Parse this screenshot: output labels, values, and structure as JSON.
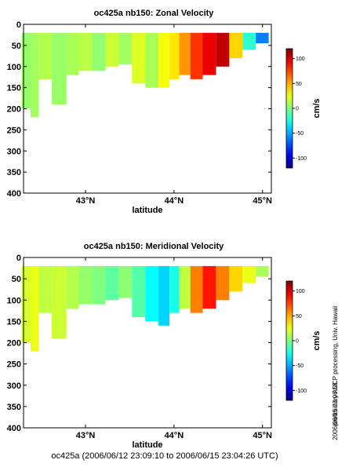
{
  "footer": "oc425a (2006/06/12 23:09:10 to 2006/06/15 23:04:26 UTC)",
  "side_note_1": "preliminary ADCP processing,   Univ. Hawaii",
  "side_note_2": "2006/06/15 23:06:58",
  "chart_data": [
    {
      "type": "heatmap",
      "title": "oc425a nb150: Zonal Velocity",
      "xlabel": "latitude",
      "ylabel": "",
      "xlim": [
        42.3,
        45.1
      ],
      "ylim": [
        400,
        0
      ],
      "xticks": [
        {
          "value": 43,
          "label": "43°N"
        },
        {
          "value": 44,
          "label": "44°N"
        },
        {
          "value": 45,
          "label": "45°N"
        }
      ],
      "yticks": [
        0,
        50,
        100,
        150,
        200,
        250,
        300,
        350,
        400
      ],
      "colorbar": {
        "label": "cm/s",
        "range": [
          -120,
          120
        ],
        "ticks": [
          100,
          50,
          0,
          -50,
          -100
        ]
      },
      "profiles": [
        {
          "lat": 42.34,
          "depth": 200,
          "value": 5
        },
        {
          "lat": 42.42,
          "depth": 220,
          "value": 8
        },
        {
          "lat": 42.52,
          "depth": 130,
          "value": 12
        },
        {
          "lat": 42.72,
          "depth": 190,
          "value": 6
        },
        {
          "lat": 42.85,
          "depth": 120,
          "value": 10
        },
        {
          "lat": 43.0,
          "depth": 110,
          "value": 14
        },
        {
          "lat": 43.15,
          "depth": 110,
          "value": 4
        },
        {
          "lat": 43.3,
          "depth": 100,
          "value": 18
        },
        {
          "lat": 43.45,
          "depth": 95,
          "value": 8
        },
        {
          "lat": 43.6,
          "depth": 140,
          "value": 22
        },
        {
          "lat": 43.75,
          "depth": 150,
          "value": 10
        },
        {
          "lat": 43.9,
          "depth": 150,
          "value": 28
        },
        {
          "lat": 44.0,
          "depth": 130,
          "value": 36
        },
        {
          "lat": 44.12,
          "depth": 120,
          "value": 55
        },
        {
          "lat": 44.25,
          "depth": 130,
          "value": 78
        },
        {
          "lat": 44.4,
          "depth": 120,
          "value": 95
        },
        {
          "lat": 44.55,
          "depth": 100,
          "value": 105
        },
        {
          "lat": 44.7,
          "depth": 80,
          "value": 40
        },
        {
          "lat": 44.85,
          "depth": 60,
          "value": -20
        },
        {
          "lat": 45.0,
          "depth": 45,
          "value": -60
        }
      ]
    },
    {
      "type": "heatmap",
      "title": "oc425a nb150: Meridional Velocity",
      "xlabel": "latitude",
      "ylabel": "",
      "xlim": [
        42.3,
        45.1
      ],
      "ylim": [
        400,
        0
      ],
      "xticks": [
        {
          "value": 43,
          "label": "43°N"
        },
        {
          "value": 44,
          "label": "44°N"
        },
        {
          "value": 45,
          "label": "45°N"
        }
      ],
      "yticks": [
        0,
        50,
        100,
        150,
        200,
        250,
        300,
        350,
        400
      ],
      "colorbar": {
        "label": "cm/s",
        "range": [
          -120,
          120
        ],
        "ticks": [
          100,
          50,
          0,
          -50,
          -100
        ]
      },
      "profiles": [
        {
          "lat": 42.34,
          "depth": 200,
          "value": 20
        },
        {
          "lat": 42.42,
          "depth": 220,
          "value": 25
        },
        {
          "lat": 42.52,
          "depth": 130,
          "value": 15
        },
        {
          "lat": 42.72,
          "depth": 190,
          "value": 18
        },
        {
          "lat": 42.85,
          "depth": 120,
          "value": 12
        },
        {
          "lat": 43.0,
          "depth": 110,
          "value": 5
        },
        {
          "lat": 43.15,
          "depth": 110,
          "value": 0
        },
        {
          "lat": 43.3,
          "depth": 100,
          "value": -8
        },
        {
          "lat": 43.45,
          "depth": 95,
          "value": 3
        },
        {
          "lat": 43.6,
          "depth": 140,
          "value": -10
        },
        {
          "lat": 43.75,
          "depth": 150,
          "value": -30
        },
        {
          "lat": 43.9,
          "depth": 160,
          "value": -40
        },
        {
          "lat": 44.0,
          "depth": 130,
          "value": -25
        },
        {
          "lat": 44.12,
          "depth": 120,
          "value": 15
        },
        {
          "lat": 44.25,
          "depth": 130,
          "value": 60
        },
        {
          "lat": 44.4,
          "depth": 120,
          "value": 85
        },
        {
          "lat": 44.55,
          "depth": 100,
          "value": 60
        },
        {
          "lat": 44.7,
          "depth": 80,
          "value": 40
        },
        {
          "lat": 44.85,
          "depth": 60,
          "value": 25
        },
        {
          "lat": 45.0,
          "depth": 45,
          "value": 10
        }
      ]
    }
  ]
}
